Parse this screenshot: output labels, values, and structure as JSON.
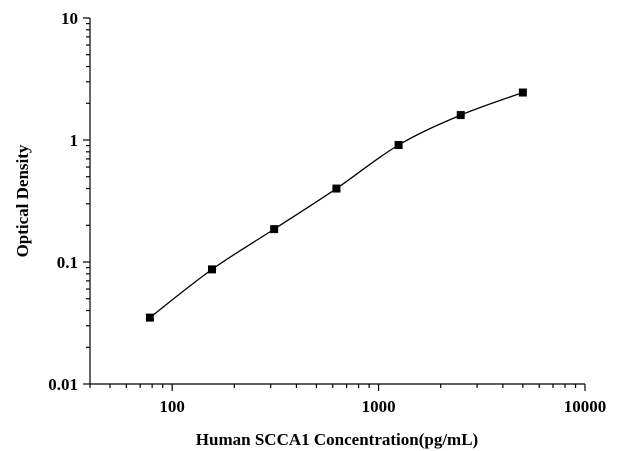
{
  "chart_data": {
    "type": "scatter",
    "title": "",
    "xlabel": "Human SCCA1 Concentration(pg/mL)",
    "ylabel": "Optical Density",
    "x_scale": "log",
    "y_scale": "log",
    "xlim": [
      40,
      10000
    ],
    "ylim": [
      0.01,
      10
    ],
    "x_ticks": [
      100,
      1000,
      10000
    ],
    "x_tick_labels": [
      "100",
      "1000",
      "10000"
    ],
    "y_ticks": [
      0.01,
      0.1,
      1,
      10
    ],
    "y_tick_labels": [
      "0.01",
      "0.1",
      "1",
      "10"
    ],
    "grid": false,
    "series": [
      {
        "x": [
          78,
          156,
          312,
          625,
          1250,
          2500,
          5000
        ],
        "y": [
          0.035,
          0.087,
          0.186,
          0.4,
          0.91,
          1.6,
          2.45
        ],
        "marker": "square",
        "fit_line": true,
        "color": "#000000"
      }
    ]
  }
}
